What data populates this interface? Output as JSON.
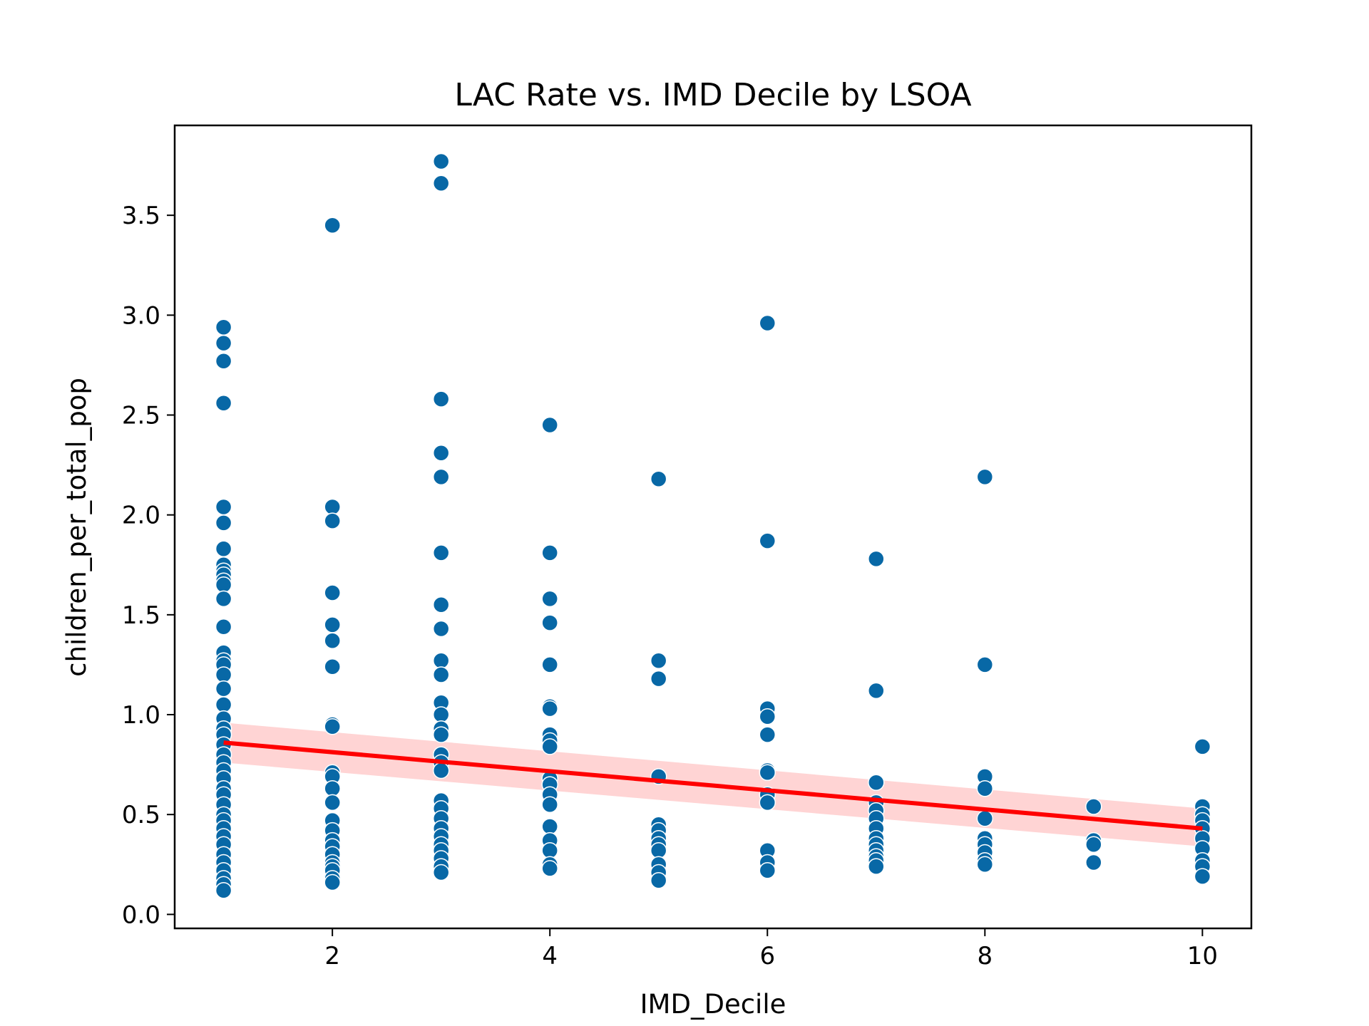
{
  "chart_data": {
    "type": "scatter",
    "title": "LAC Rate vs. IMD Decile by LSOA",
    "xlabel": "IMD_Decile",
    "ylabel": "children_per_total_pop",
    "xlim": [
      0.55,
      10.45
    ],
    "ylim": [
      -0.07,
      3.95
    ],
    "xticks": [
      2,
      4,
      6,
      8,
      10
    ],
    "xtick_labels": [
      "2",
      "4",
      "6",
      "8",
      "10"
    ],
    "yticks": [
      0.0,
      0.5,
      1.0,
      1.5,
      2.0,
      2.5,
      3.0,
      3.5
    ],
    "ytick_labels": [
      "0.0",
      "0.5",
      "1.0",
      "1.5",
      "2.0",
      "2.5",
      "3.0",
      "3.5"
    ],
    "grid": false,
    "legend": false,
    "colors": {
      "points": "#0868a6",
      "regression": "#ff0000",
      "confidence_band": "#ffcccc"
    },
    "points": [
      {
        "x": 1,
        "y": 2.94
      },
      {
        "x": 1,
        "y": 2.86
      },
      {
        "x": 1,
        "y": 2.77
      },
      {
        "x": 1,
        "y": 2.56
      },
      {
        "x": 1,
        "y": 2.04
      },
      {
        "x": 1,
        "y": 1.96
      },
      {
        "x": 1,
        "y": 1.83
      },
      {
        "x": 1,
        "y": 1.75
      },
      {
        "x": 1,
        "y": 1.72
      },
      {
        "x": 1,
        "y": 1.7
      },
      {
        "x": 1,
        "y": 1.67
      },
      {
        "x": 1,
        "y": 1.65
      },
      {
        "x": 1,
        "y": 1.58
      },
      {
        "x": 1,
        "y": 1.44
      },
      {
        "x": 1,
        "y": 1.31
      },
      {
        "x": 1,
        "y": 1.27
      },
      {
        "x": 1,
        "y": 1.25
      },
      {
        "x": 1,
        "y": 1.2
      },
      {
        "x": 1,
        "y": 1.13
      },
      {
        "x": 1,
        "y": 1.05
      },
      {
        "x": 1,
        "y": 0.98
      },
      {
        "x": 1,
        "y": 0.93
      },
      {
        "x": 1,
        "y": 0.9
      },
      {
        "x": 1,
        "y": 0.85
      },
      {
        "x": 1,
        "y": 0.8
      },
      {
        "x": 1,
        "y": 0.76
      },
      {
        "x": 1,
        "y": 0.72
      },
      {
        "x": 1,
        "y": 0.68
      },
      {
        "x": 1,
        "y": 0.63
      },
      {
        "x": 1,
        "y": 0.6
      },
      {
        "x": 1,
        "y": 0.55
      },
      {
        "x": 1,
        "y": 0.5
      },
      {
        "x": 1,
        "y": 0.47
      },
      {
        "x": 1,
        "y": 0.43
      },
      {
        "x": 1,
        "y": 0.39
      },
      {
        "x": 1,
        "y": 0.35
      },
      {
        "x": 1,
        "y": 0.3
      },
      {
        "x": 1,
        "y": 0.26
      },
      {
        "x": 1,
        "y": 0.22
      },
      {
        "x": 1,
        "y": 0.18
      },
      {
        "x": 1,
        "y": 0.15
      },
      {
        "x": 1,
        "y": 0.12
      },
      {
        "x": 2,
        "y": 3.45
      },
      {
        "x": 2,
        "y": 2.04
      },
      {
        "x": 2,
        "y": 1.97
      },
      {
        "x": 2,
        "y": 1.61
      },
      {
        "x": 2,
        "y": 1.45
      },
      {
        "x": 2,
        "y": 1.37
      },
      {
        "x": 2,
        "y": 1.24
      },
      {
        "x": 2,
        "y": 0.95
      },
      {
        "x": 2,
        "y": 0.94
      },
      {
        "x": 2,
        "y": 0.71
      },
      {
        "x": 2,
        "y": 0.69
      },
      {
        "x": 2,
        "y": 0.63
      },
      {
        "x": 2,
        "y": 0.56
      },
      {
        "x": 2,
        "y": 0.47
      },
      {
        "x": 2,
        "y": 0.42
      },
      {
        "x": 2,
        "y": 0.37
      },
      {
        "x": 2,
        "y": 0.34
      },
      {
        "x": 2,
        "y": 0.3
      },
      {
        "x": 2,
        "y": 0.26
      },
      {
        "x": 2,
        "y": 0.24
      },
      {
        "x": 2,
        "y": 0.22
      },
      {
        "x": 2,
        "y": 0.18
      },
      {
        "x": 2,
        "y": 0.16
      },
      {
        "x": 3,
        "y": 3.77
      },
      {
        "x": 3,
        "y": 3.66
      },
      {
        "x": 3,
        "y": 2.58
      },
      {
        "x": 3,
        "y": 2.31
      },
      {
        "x": 3,
        "y": 2.19
      },
      {
        "x": 3,
        "y": 1.81
      },
      {
        "x": 3,
        "y": 1.55
      },
      {
        "x": 3,
        "y": 1.43
      },
      {
        "x": 3,
        "y": 1.27
      },
      {
        "x": 3,
        "y": 1.2
      },
      {
        "x": 3,
        "y": 1.06
      },
      {
        "x": 3,
        "y": 1.0
      },
      {
        "x": 3,
        "y": 0.93
      },
      {
        "x": 3,
        "y": 0.9
      },
      {
        "x": 3,
        "y": 0.8
      },
      {
        "x": 3,
        "y": 0.76
      },
      {
        "x": 3,
        "y": 0.72
      },
      {
        "x": 3,
        "y": 0.57
      },
      {
        "x": 3,
        "y": 0.53
      },
      {
        "x": 3,
        "y": 0.48
      },
      {
        "x": 3,
        "y": 0.43
      },
      {
        "x": 3,
        "y": 0.39
      },
      {
        "x": 3,
        "y": 0.35
      },
      {
        "x": 3,
        "y": 0.32
      },
      {
        "x": 3,
        "y": 0.28
      },
      {
        "x": 3,
        "y": 0.24
      },
      {
        "x": 3,
        "y": 0.21
      },
      {
        "x": 4,
        "y": 2.45
      },
      {
        "x": 4,
        "y": 1.81
      },
      {
        "x": 4,
        "y": 1.58
      },
      {
        "x": 4,
        "y": 1.46
      },
      {
        "x": 4,
        "y": 1.25
      },
      {
        "x": 4,
        "y": 1.04
      },
      {
        "x": 4,
        "y": 1.03
      },
      {
        "x": 4,
        "y": 0.9
      },
      {
        "x": 4,
        "y": 0.87
      },
      {
        "x": 4,
        "y": 0.84
      },
      {
        "x": 4,
        "y": 0.68
      },
      {
        "x": 4,
        "y": 0.65
      },
      {
        "x": 4,
        "y": 0.6
      },
      {
        "x": 4,
        "y": 0.55
      },
      {
        "x": 4,
        "y": 0.44
      },
      {
        "x": 4,
        "y": 0.37
      },
      {
        "x": 4,
        "y": 0.32
      },
      {
        "x": 4,
        "y": 0.25
      },
      {
        "x": 4,
        "y": 0.23
      },
      {
        "x": 5,
        "y": 2.18
      },
      {
        "x": 5,
        "y": 1.27
      },
      {
        "x": 5,
        "y": 1.18
      },
      {
        "x": 5,
        "y": 0.69
      },
      {
        "x": 5,
        "y": 0.45
      },
      {
        "x": 5,
        "y": 0.42
      },
      {
        "x": 5,
        "y": 0.38
      },
      {
        "x": 5,
        "y": 0.35
      },
      {
        "x": 5,
        "y": 0.32
      },
      {
        "x": 5,
        "y": 0.25
      },
      {
        "x": 5,
        "y": 0.21
      },
      {
        "x": 5,
        "y": 0.17
      },
      {
        "x": 6,
        "y": 2.96
      },
      {
        "x": 6,
        "y": 1.87
      },
      {
        "x": 6,
        "y": 1.03
      },
      {
        "x": 6,
        "y": 0.99
      },
      {
        "x": 6,
        "y": 0.9
      },
      {
        "x": 6,
        "y": 0.72
      },
      {
        "x": 6,
        "y": 0.71
      },
      {
        "x": 6,
        "y": 0.6
      },
      {
        "x": 6,
        "y": 0.56
      },
      {
        "x": 6,
        "y": 0.32
      },
      {
        "x": 6,
        "y": 0.26
      },
      {
        "x": 6,
        "y": 0.22
      },
      {
        "x": 7,
        "y": 1.78
      },
      {
        "x": 7,
        "y": 1.12
      },
      {
        "x": 7,
        "y": 0.66
      },
      {
        "x": 7,
        "y": 0.56
      },
      {
        "x": 7,
        "y": 0.52
      },
      {
        "x": 7,
        "y": 0.48
      },
      {
        "x": 7,
        "y": 0.43
      },
      {
        "x": 7,
        "y": 0.38
      },
      {
        "x": 7,
        "y": 0.35
      },
      {
        "x": 7,
        "y": 0.32
      },
      {
        "x": 7,
        "y": 0.29
      },
      {
        "x": 7,
        "y": 0.27
      },
      {
        "x": 7,
        "y": 0.24
      },
      {
        "x": 8,
        "y": 2.19
      },
      {
        "x": 8,
        "y": 1.25
      },
      {
        "x": 8,
        "y": 0.69
      },
      {
        "x": 8,
        "y": 0.63
      },
      {
        "x": 8,
        "y": 0.48
      },
      {
        "x": 8,
        "y": 0.38
      },
      {
        "x": 8,
        "y": 0.35
      },
      {
        "x": 8,
        "y": 0.31
      },
      {
        "x": 8,
        "y": 0.27
      },
      {
        "x": 8,
        "y": 0.25
      },
      {
        "x": 9,
        "y": 0.54
      },
      {
        "x": 9,
        "y": 0.37
      },
      {
        "x": 9,
        "y": 0.35
      },
      {
        "x": 9,
        "y": 0.26
      },
      {
        "x": 10,
        "y": 0.84
      },
      {
        "x": 10,
        "y": 0.54
      },
      {
        "x": 10,
        "y": 0.5
      },
      {
        "x": 10,
        "y": 0.47
      },
      {
        "x": 10,
        "y": 0.43
      },
      {
        "x": 10,
        "y": 0.38
      },
      {
        "x": 10,
        "y": 0.33
      },
      {
        "x": 10,
        "y": 0.27
      },
      {
        "x": 10,
        "y": 0.24
      },
      {
        "x": 10,
        "y": 0.19
      }
    ],
    "regression": {
      "x": [
        1,
        10
      ],
      "y": [
        0.86,
        0.43
      ],
      "ci_lower": [
        0.76,
        0.34
      ],
      "ci_upper": [
        0.96,
        0.53
      ]
    }
  }
}
